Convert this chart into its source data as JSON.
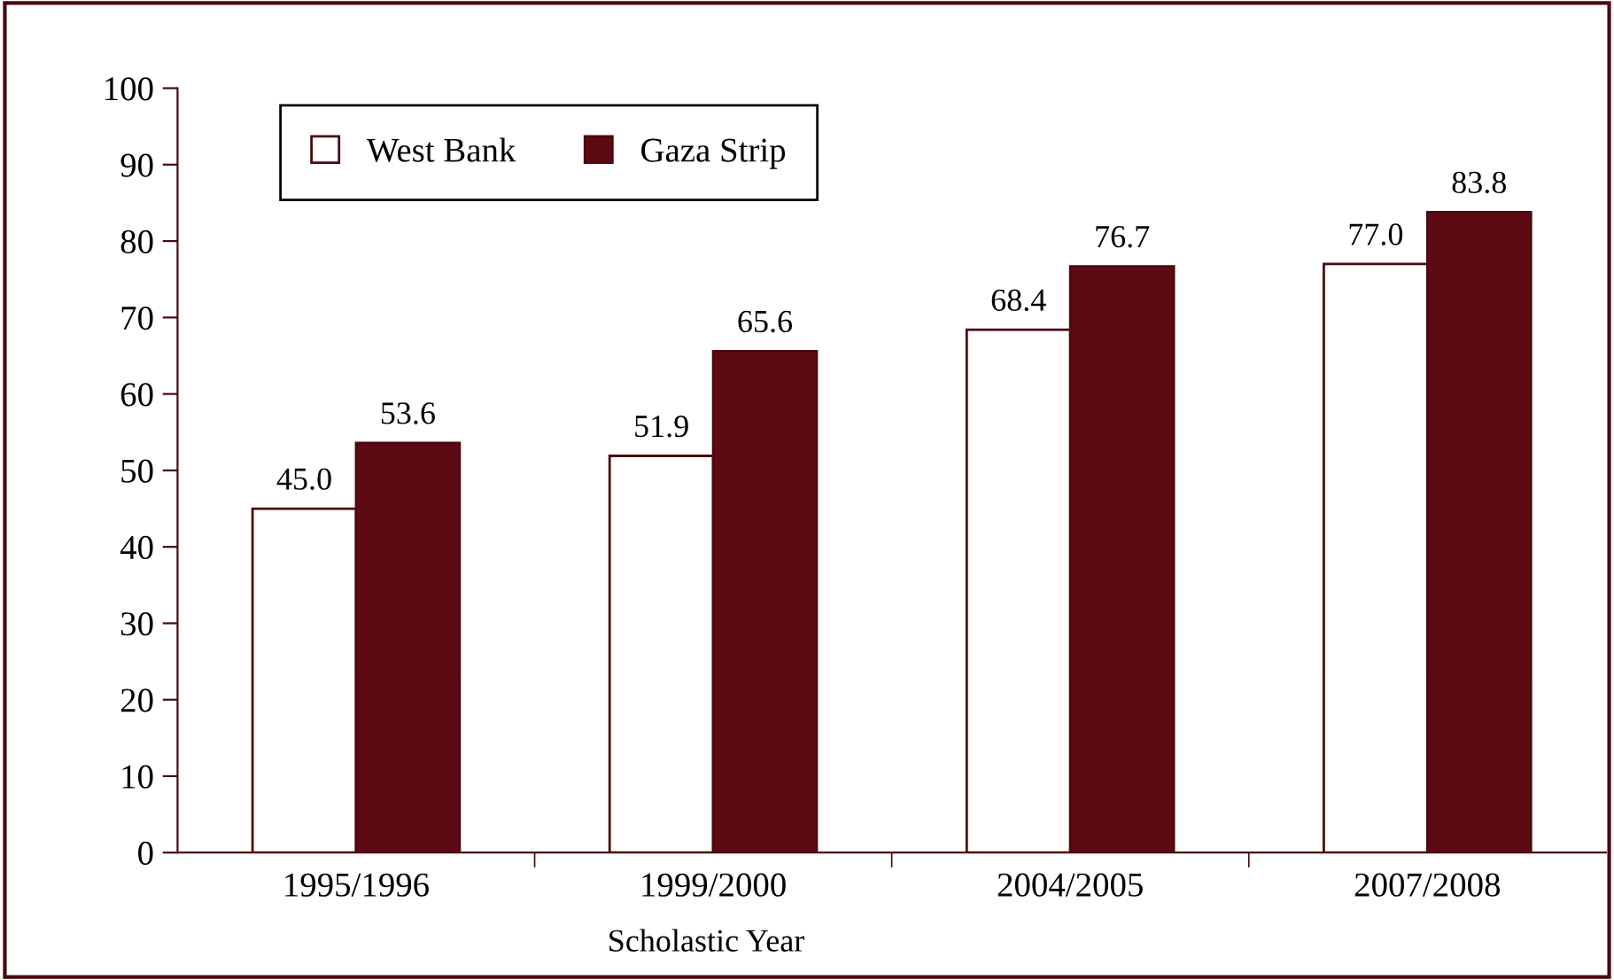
{
  "chart_data": {
    "type": "bar",
    "xlabel": "Scholastic Year",
    "categories": [
      "1995/1996",
      "1999/2000",
      "2004/2005",
      "2007/2008"
    ],
    "series": [
      {
        "name": "West Bank",
        "color": "#ffffff",
        "values": [
          45.0,
          51.9,
          68.4,
          77.0
        ],
        "value_labels": [
          "45.0",
          "51.9",
          "68.4",
          "77.0"
        ]
      },
      {
        "name": "Gaza Strip",
        "color": "#5e0a14",
        "values": [
          53.6,
          65.6,
          76.7,
          83.8
        ],
        "value_labels": [
          "53.6",
          "65.6",
          "76.7",
          "83.8"
        ]
      }
    ],
    "ylim": [
      0,
      100
    ],
    "yticks": [
      0,
      10,
      20,
      30,
      40,
      50,
      60,
      70,
      80,
      90,
      100
    ],
    "legend": "top left",
    "grid": false
  }
}
